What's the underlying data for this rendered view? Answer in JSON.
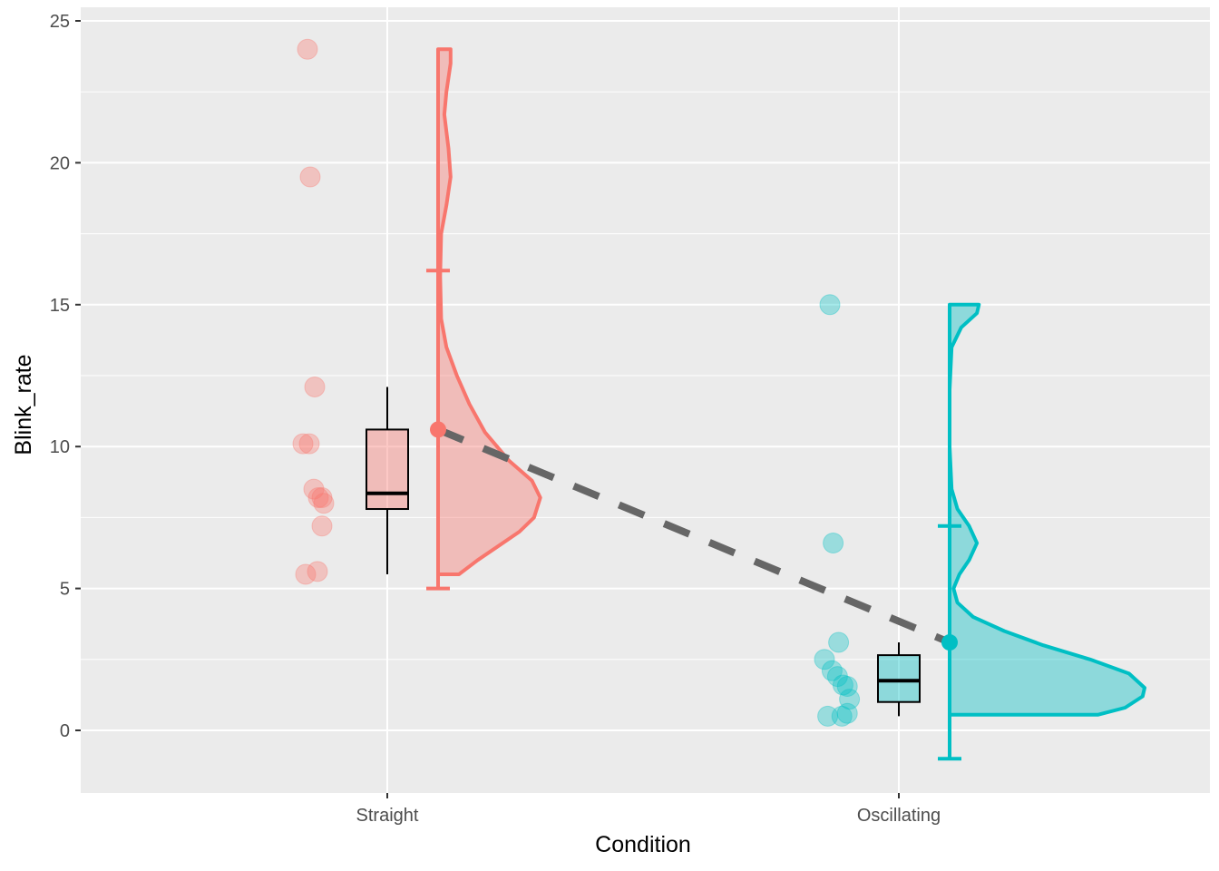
{
  "chart_data": {
    "type": "raincloud",
    "title": "",
    "xlabel": "Condition",
    "ylabel": "Blink_rate",
    "categories": [
      "Straight",
      "Oscillating"
    ],
    "ylim": [
      -2.25,
      25.25
    ],
    "yticks": [
      0,
      5,
      10,
      15,
      20,
      25
    ],
    "grid": true,
    "legend": "none",
    "colors": {
      "Straight": "#F8766D",
      "Oscillating": "#00BFC4",
      "panel": "#EBEBEB",
      "grid": "#FFFFFF",
      "trend_line": "#666666"
    },
    "groups": [
      {
        "name": "Straight",
        "points": [
          24.0,
          19.5,
          12.1,
          10.1,
          10.1,
          8.5,
          8.2,
          8.2,
          8.0,
          7.2,
          5.6,
          5.5
        ],
        "box": {
          "min": 5.5,
          "q1": 7.8,
          "median": 8.35,
          "q3": 10.6,
          "max": 12.1
        },
        "mean": 10.6,
        "errorbar": [
          5.0,
          16.2
        ],
        "density": [
          [
            5.5,
            0.2
          ],
          [
            6.0,
            0.38
          ],
          [
            6.5,
            0.58
          ],
          [
            7.0,
            0.78
          ],
          [
            7.5,
            0.92
          ],
          [
            8.2,
            0.98
          ],
          [
            8.8,
            0.9
          ],
          [
            9.5,
            0.68
          ],
          [
            10.5,
            0.45
          ],
          [
            11.5,
            0.3
          ],
          [
            12.5,
            0.18
          ],
          [
            13.5,
            0.08
          ],
          [
            14.5,
            0.03
          ],
          [
            16.0,
            0.02
          ],
          [
            17.5,
            0.03
          ],
          [
            18.5,
            0.08
          ],
          [
            19.5,
            0.12
          ],
          [
            20.5,
            0.1
          ],
          [
            21.7,
            0.06
          ],
          [
            22.5,
            0.08
          ],
          [
            23.5,
            0.12
          ],
          [
            24.0,
            0.12
          ]
        ]
      },
      {
        "name": "Oscillating",
        "points": [
          15.0,
          6.6,
          3.1,
          2.5,
          2.1,
          1.9,
          1.6,
          1.55,
          1.1,
          0.6,
          0.5,
          0.5
        ],
        "box": {
          "min": 0.5,
          "q1": 1.0,
          "median": 1.75,
          "q3": 2.65,
          "max": 3.1
        },
        "mean": 3.1,
        "errorbar": [
          -1.0,
          7.2
        ],
        "density": [
          [
            0.55,
            0.76
          ],
          [
            0.8,
            0.9
          ],
          [
            1.2,
            0.99
          ],
          [
            1.5,
            1.0
          ],
          [
            2.0,
            0.92
          ],
          [
            2.5,
            0.72
          ],
          [
            3.0,
            0.48
          ],
          [
            3.5,
            0.28
          ],
          [
            4.0,
            0.12
          ],
          [
            4.5,
            0.04
          ],
          [
            5.0,
            0.02
          ],
          [
            5.5,
            0.05
          ],
          [
            6.0,
            0.1
          ],
          [
            6.6,
            0.14
          ],
          [
            7.2,
            0.1
          ],
          [
            7.8,
            0.04
          ],
          [
            8.5,
            0.01
          ],
          [
            10.0,
            0.0
          ],
          [
            12.0,
            0.0
          ],
          [
            13.5,
            0.01
          ],
          [
            14.2,
            0.06
          ],
          [
            14.7,
            0.14
          ],
          [
            15.0,
            0.15
          ]
        ]
      }
    ]
  }
}
